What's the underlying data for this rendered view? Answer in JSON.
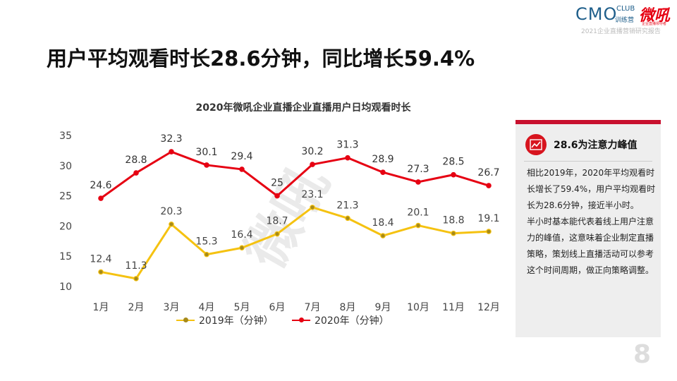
{
  "logo": {
    "brand": "CMO",
    "club": "CLUB",
    "camp": "训练营",
    "partner": "微吼",
    "partner_sub": "企业直播领导者",
    "caption": "2021企业直播营销研究报告"
  },
  "page_title": "用户平均观看时长28.6分钟，同比增长59.4%",
  "page_number": "8",
  "watermark": "微吼",
  "colors": {
    "series_2019": "#f5c211",
    "series_2020": "#e60012",
    "panel_accent": "#c8102e"
  },
  "chart_data": {
    "type": "line",
    "title": "2020年微吼企业直播企业直播用户日均观看时长",
    "xlabel": "",
    "ylabel": "",
    "categories": [
      "1月",
      "2月",
      "3月",
      "4月",
      "5月",
      "6月",
      "7月",
      "8月",
      "9月",
      "10月",
      "11月",
      "12月"
    ],
    "ylim": [
      10,
      35
    ],
    "yticks": [
      10,
      15,
      20,
      25,
      30,
      35
    ],
    "grid": false,
    "legend_position": "bottom",
    "series": [
      {
        "name": "2019年（分钟）",
        "color": "#f5c211",
        "values": [
          12.4,
          11.3,
          20.3,
          15.3,
          16.4,
          18.7,
          23.1,
          21.3,
          18.4,
          20.1,
          18.8,
          19.1
        ],
        "labels": [
          "12.4",
          "11.3",
          "20.3",
          "15.3",
          "16.4",
          "18.7",
          "23.1",
          "21.3",
          "18.4",
          "20.1",
          "18.8",
          "19.1"
        ]
      },
      {
        "name": "2020年（分钟）",
        "color": "#e60012",
        "values": [
          24.6,
          28.8,
          32.3,
          30.1,
          29.4,
          25,
          30.2,
          31.3,
          28.9,
          27.3,
          28.5,
          26.7
        ],
        "labels": [
          "24.6",
          "28.8",
          "32.3",
          "30.1",
          "29.4",
          "25",
          "30.2",
          "31.3",
          "28.9",
          "27.3",
          "28.5",
          "26.7"
        ]
      }
    ]
  },
  "panel": {
    "heading": "28.6为注意力峰值",
    "icon": "trend-chart-icon",
    "paragraph1": "相比2019年，2020年平均观看时长增长了59.4%，用户平均观看时长为28.6分钟，接近半小时。",
    "paragraph2": "半小时基本能代表着线上用户注意力的峰值，这意味着企业制定直播策略，策划线上直播活动可以参考这个时间周期，做正向策略调整。"
  }
}
